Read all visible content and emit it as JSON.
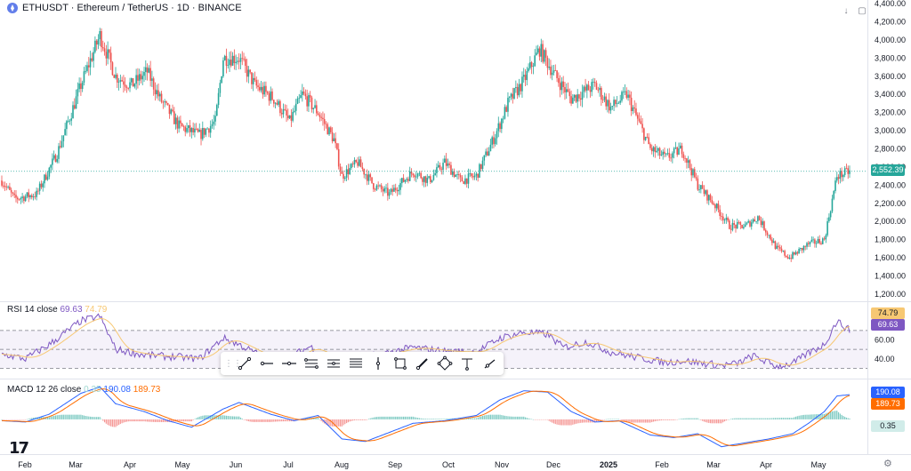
{
  "header": {
    "symbol": "ETHUSDT",
    "title": "ETHUSDT · Ethereum / TetherUS · 1D · BINANCE"
  },
  "price_badge": "2,552.39",
  "rsi": {
    "label": "RSI 14 close",
    "value": "69.63",
    "ma_value": "74.79",
    "badge_ma": "74.79",
    "badge_rsi": "69.63"
  },
  "macd": {
    "label": "MACD 12 26 close",
    "hist": "0.35",
    "macd": "190.08",
    "signal": "189.73",
    "badge_macd": "190.08",
    "badge_signal": "189.73",
    "badge_hist": "0.35"
  },
  "colors": {
    "up": "#26a69a",
    "down": "#ef5350",
    "rsi_line": "#7e57c2",
    "rsi_ma": "#f7c873",
    "macd_line": "#2962ff",
    "signal_line": "#ff6d00",
    "price_badge": "#26a69a"
  },
  "icons": {
    "logo": "tradingview-logo-icon",
    "settings": "gear-icon",
    "toolbar": [
      "drag-handle-icon",
      "trend-line-icon",
      "horizontal-ray-icon",
      "horizontal-line-icon",
      "parallel-channel-icon",
      "regression-channel-icon",
      "fib-retracement-icon",
      "vertical-line-icon",
      "rectangle-icon",
      "brush-icon",
      "pattern-icon",
      "long-position-icon",
      "ray-icon"
    ]
  },
  "chart_data": {
    "type": "candlestick",
    "price_axis": {
      "ticks": [
        "4,400.00",
        "4,200.00",
        "4,000.00",
        "3,800.00",
        "3,600.00",
        "3,400.00",
        "3,200.00",
        "3,000.00",
        "2,800.00",
        "2,600.00",
        "2,400.00",
        "2,200.00",
        "2,000.00",
        "1,800.00",
        "1,600.00",
        "1,400.00",
        "1,200.00"
      ],
      "range": [
        1150,
        4420
      ]
    },
    "rsi_axis": {
      "ticks": [
        "60.00",
        "40.00"
      ],
      "bands": [
        70,
        50,
        30
      ],
      "range": [
        20,
        100
      ]
    },
    "time_axis": [
      "Feb",
      "Mar",
      "Apr",
      "May",
      "Jun",
      "Jul",
      "Aug",
      "Sep",
      "Oct",
      "Nov",
      "Dec",
      "2025",
      "Feb",
      "Mar",
      "Apr",
      "May"
    ],
    "last_price": 2552.39,
    "price_path": {
      "description_points": [
        [
          0,
          2450
        ],
        [
          8,
          2250
        ],
        [
          22,
          2300
        ],
        [
          35,
          2750
        ],
        [
          50,
          3500
        ],
        [
          62,
          4050
        ],
        [
          72,
          3600
        ],
        [
          82,
          3500
        ],
        [
          92,
          3650
        ],
        [
          100,
          3350
        ],
        [
          112,
          3050
        ],
        [
          125,
          2950
        ],
        [
          135,
          3100
        ],
        [
          140,
          3800
        ],
        [
          150,
          3800
        ],
        [
          160,
          3500
        ],
        [
          172,
          3350
        ],
        [
          182,
          3100
        ],
        [
          190,
          3400
        ],
        [
          200,
          3200
        ],
        [
          210,
          2900
        ],
        [
          215,
          2500
        ],
        [
          225,
          2650
        ],
        [
          235,
          2400
        ],
        [
          245,
          2300
        ],
        [
          260,
          2550
        ],
        [
          270,
          2450
        ],
        [
          280,
          2650
        ],
        [
          290,
          2450
        ],
        [
          300,
          2500
        ],
        [
          312,
          2950
        ],
        [
          320,
          3300
        ],
        [
          330,
          3550
        ],
        [
          340,
          3900
        ],
        [
          350,
          3600
        ],
        [
          360,
          3350
        ],
        [
          375,
          3500
        ],
        [
          385,
          3250
        ],
        [
          395,
          3400
        ],
        [
          410,
          2800
        ],
        [
          420,
          2700
        ],
        [
          430,
          2800
        ],
        [
          440,
          2400
        ],
        [
          450,
          2200
        ],
        [
          460,
          1950
        ],
        [
          470,
          1950
        ],
        [
          478,
          2050
        ],
        [
          490,
          1700
        ],
        [
          498,
          1600
        ],
        [
          510,
          1750
        ],
        [
          520,
          1800
        ],
        [
          528,
          2500
        ],
        [
          536,
          2550
        ]
      ],
      "x_range": [
        0,
        536
      ]
    },
    "rsi_path": [
      [
        0,
        45
      ],
      [
        15,
        40
      ],
      [
        30,
        55
      ],
      [
        50,
        80
      ],
      [
        62,
        85
      ],
      [
        72,
        50
      ],
      [
        90,
        44
      ],
      [
        110,
        42
      ],
      [
        125,
        40
      ],
      [
        140,
        62
      ],
      [
        150,
        55
      ],
      [
        165,
        42
      ],
      [
        180,
        40
      ],
      [
        195,
        53
      ],
      [
        210,
        35
      ],
      [
        225,
        40
      ],
      [
        240,
        45
      ],
      [
        260,
        52
      ],
      [
        280,
        48
      ],
      [
        300,
        47
      ],
      [
        315,
        62
      ],
      [
        330,
        68
      ],
      [
        345,
        66
      ],
      [
        355,
        52
      ],
      [
        370,
        58
      ],
      [
        385,
        47
      ],
      [
        400,
        42
      ],
      [
        410,
        39
      ],
      [
        420,
        36
      ],
      [
        430,
        38
      ],
      [
        440,
        36
      ],
      [
        455,
        33
      ],
      [
        465,
        35
      ],
      [
        475,
        43
      ],
      [
        490,
        32
      ],
      [
        500,
        35
      ],
      [
        510,
        46
      ],
      [
        520,
        55
      ],
      [
        528,
        80
      ],
      [
        536,
        70
      ]
    ],
    "macd_path": [
      [
        0,
        -10
      ],
      [
        15,
        -20
      ],
      [
        30,
        40
      ],
      [
        50,
        200
      ],
      [
        62,
        250
      ],
      [
        72,
        120
      ],
      [
        90,
        60
      ],
      [
        105,
        -10
      ],
      [
        120,
        -60
      ],
      [
        140,
        80
      ],
      [
        150,
        130
      ],
      [
        170,
        40
      ],
      [
        185,
        -10
      ],
      [
        200,
        30
      ],
      [
        215,
        -150
      ],
      [
        230,
        -170
      ],
      [
        245,
        -100
      ],
      [
        260,
        -30
      ],
      [
        280,
        -10
      ],
      [
        300,
        30
      ],
      [
        315,
        150
      ],
      [
        330,
        220
      ],
      [
        345,
        210
      ],
      [
        360,
        60
      ],
      [
        375,
        -20
      ],
      [
        390,
        -10
      ],
      [
        410,
        -120
      ],
      [
        425,
        -140
      ],
      [
        440,
        -110
      ],
      [
        455,
        -210
      ],
      [
        470,
        -180
      ],
      [
        485,
        -150
      ],
      [
        500,
        -110
      ],
      [
        510,
        -30
      ],
      [
        520,
        60
      ],
      [
        528,
        180
      ],
      [
        536,
        190
      ]
    ]
  }
}
